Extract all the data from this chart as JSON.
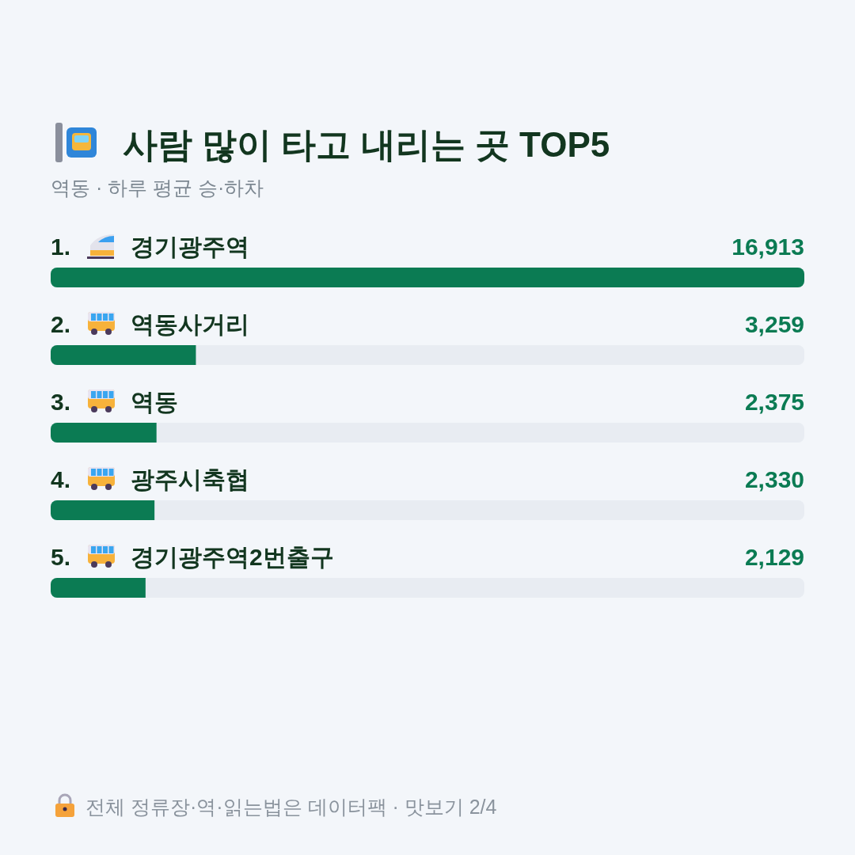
{
  "chart_data": {
    "type": "bar",
    "orientation": "horizontal",
    "title": "사람 많이 타고 내리는 곳 TOP5",
    "subtitle": "역동 · 하루 평균 승·하차",
    "categories": [
      "경기광주역",
      "역동사거리",
      "역동",
      "광주시축협",
      "경기광주역2번출구"
    ],
    "values": [
      16913,
      3259,
      2375,
      2330,
      2129
    ],
    "value_labels": [
      "16,913",
      "3,259",
      "2,375",
      "2,330",
      "2,129"
    ],
    "color": "#0b7b53",
    "annotations": [
      "1.",
      "2.",
      "3.",
      "4.",
      "5.",
      "전체 정류장·역·읽는법은 데이터팩 · 맛보기 2/4"
    ]
  }
}
